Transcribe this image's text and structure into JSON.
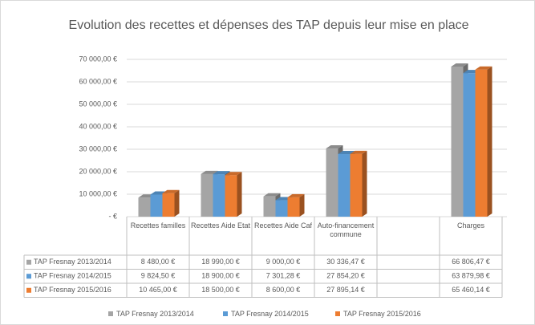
{
  "chart_data": {
    "type": "bar3d",
    "title": "Evolution des recettes et dépenses des TAP depuis leur mise en place",
    "categories": [
      "Recettes familles",
      "Recettes Aide Etat",
      "Recettes Aide Caf",
      "Auto-financement commune",
      null,
      "Charges"
    ],
    "series": [
      {
        "name": "TAP Fresnay 2013/2014",
        "color": "#a5a5a5",
        "values": [
          8480,
          18990,
          9000,
          30336.47,
          null,
          66806.47
        ],
        "value_labels": [
          "8 480,00 €",
          "18 990,00 €",
          "9 000,00 €",
          "30 336,47 €",
          null,
          "66 806,47 €"
        ]
      },
      {
        "name": "TAP Fresnay 2014/2015",
        "color": "#5b9bd5",
        "values": [
          9824.5,
          18900,
          7301.28,
          27854.2,
          null,
          63879.98
        ],
        "value_labels": [
          "9 824,50 €",
          "18 900,00 €",
          "7 301,28 €",
          "27 854,20 €",
          null,
          "63 879,98 €"
        ]
      },
      {
        "name": "TAP Fresnay 2015/2016",
        "color": "#ed7d31",
        "values": [
          10465,
          18500,
          8600,
          27895.14,
          null,
          65460.14
        ],
        "value_labels": [
          "10 465,00 €",
          "18 500,00 €",
          "8 600,00 €",
          "27 895,14 €",
          null,
          "65 460,14 €"
        ]
      }
    ],
    "ylim": [
      0,
      70000
    ],
    "yticks": [
      {
        "value": 0,
        "label": "- €"
      },
      {
        "value": 10000,
        "label": "10 000,00 €"
      },
      {
        "value": 20000,
        "label": "20 000,00 €"
      },
      {
        "value": 30000,
        "label": "30 000,00 €"
      },
      {
        "value": 40000,
        "label": "40 000,00 €"
      },
      {
        "value": 50000,
        "label": "50 000,00 €"
      },
      {
        "value": 60000,
        "label": "60 000,00 €"
      },
      {
        "value": 70000,
        "label": "70 000,00 €"
      }
    ],
    "grid": true,
    "legend": "bottom"
  }
}
